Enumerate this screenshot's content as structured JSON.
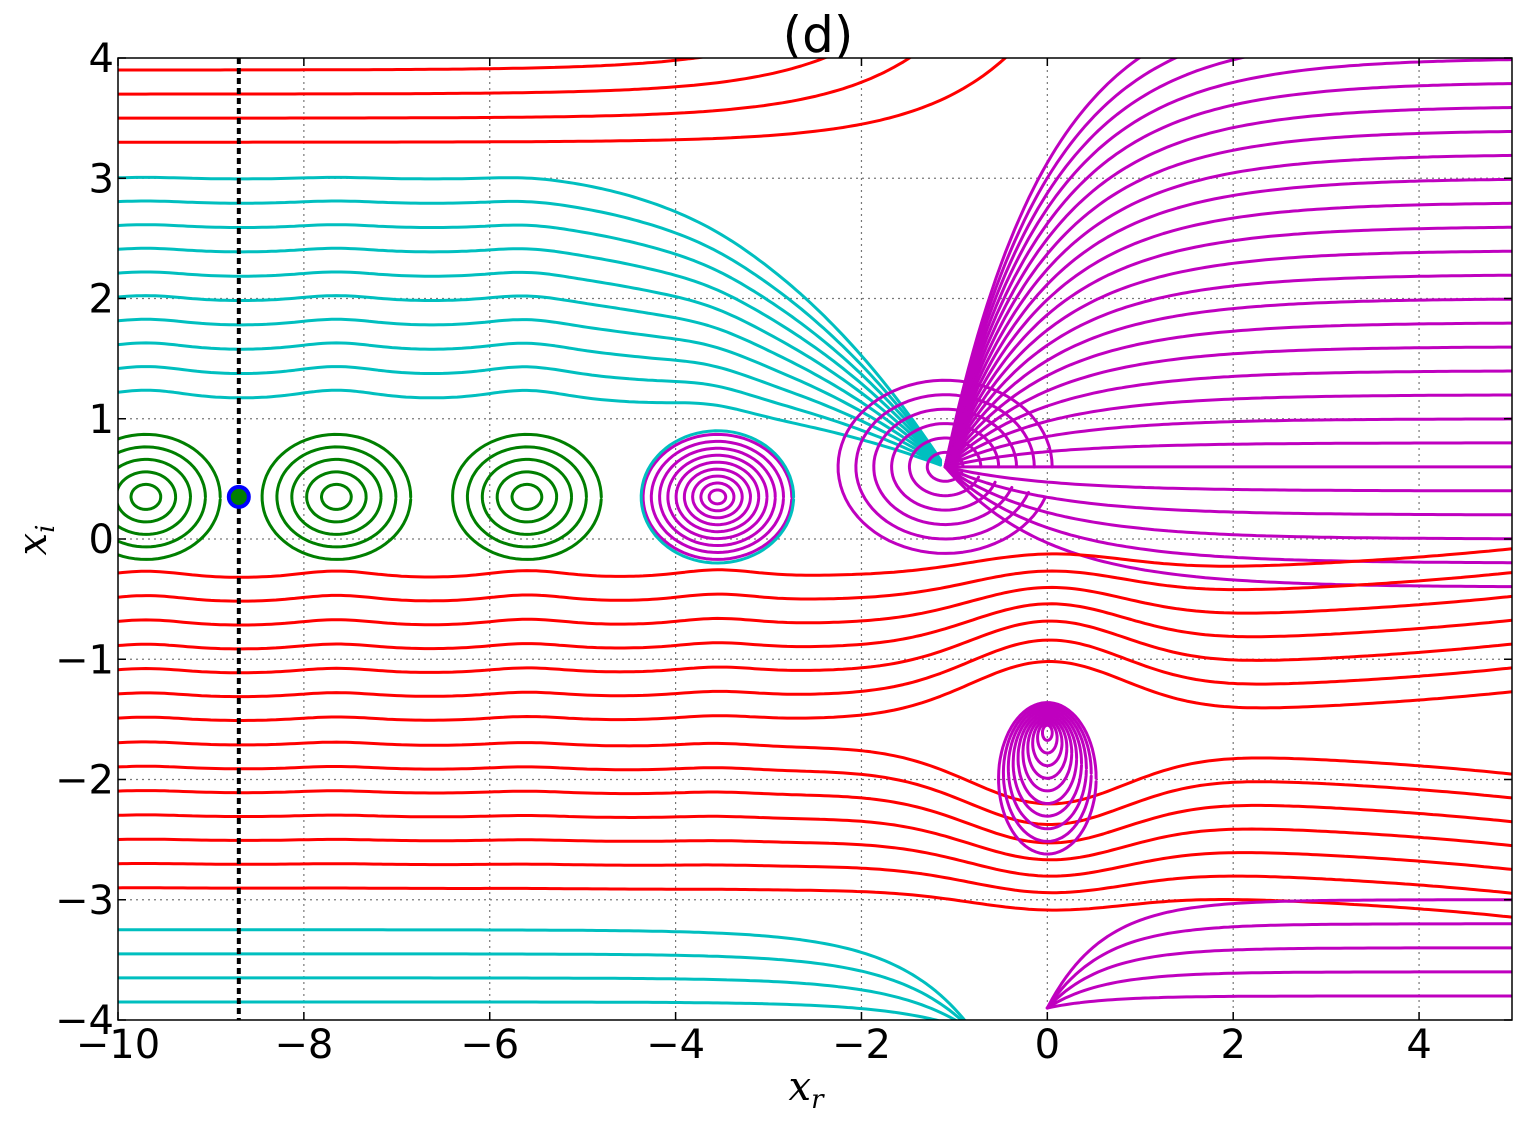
{
  "chart_data": {
    "type": "line",
    "title": "(d)",
    "xlabel": "x_r",
    "ylabel": "x_i",
    "xlabel_main": "x",
    "xlabel_sub": "r",
    "ylabel_main": "x",
    "ylabel_sub": "i",
    "xlim": [
      -10,
      5
    ],
    "ylim": [
      -4,
      4
    ],
    "grid": true,
    "x_ticks": [
      {
        "value": -10,
        "label": "−10"
      },
      {
        "value": -8,
        "label": "−8"
      },
      {
        "value": -6,
        "label": "−6"
      },
      {
        "value": -4,
        "label": "−4"
      },
      {
        "value": -2,
        "label": "−2"
      },
      {
        "value": 0,
        "label": "0"
      },
      {
        "value": 2,
        "label": "2"
      },
      {
        "value": 4,
        "label": "4"
      }
    ],
    "y_ticks": [
      {
        "value": -4,
        "label": "−4"
      },
      {
        "value": -3,
        "label": "−3"
      },
      {
        "value": -2,
        "label": "−2"
      },
      {
        "value": -1,
        "label": "−1"
      },
      {
        "value": 0,
        "label": "0"
      },
      {
        "value": 1,
        "label": "1"
      },
      {
        "value": 2,
        "label": "2"
      },
      {
        "value": 3,
        "label": "3"
      },
      {
        "value": 4,
        "label": "4"
      }
    ],
    "colors": {
      "red": "#ff0000",
      "cyan": "#00bfbf",
      "magenta": "#bf00bf",
      "green": "#007f00",
      "marker_edge": "#0000ff",
      "marker_fill": "#007f00",
      "branch_cut": "#000000"
    },
    "branch_cut_x": -8.7,
    "marker_point": {
      "x": -8.7,
      "y": 0.35
    },
    "vortex_centers": [
      {
        "x": -9.7,
        "y": 0.35
      },
      {
        "x": -7.65,
        "y": 0.35
      },
      {
        "x": -5.6,
        "y": 0.35
      },
      {
        "x": -3.55,
        "y": 0.35
      }
    ],
    "spiral_sink": {
      "x": -1.1,
      "y": 0.6
    },
    "pole": {
      "x": 0.0,
      "y": -1.57
    }
  }
}
